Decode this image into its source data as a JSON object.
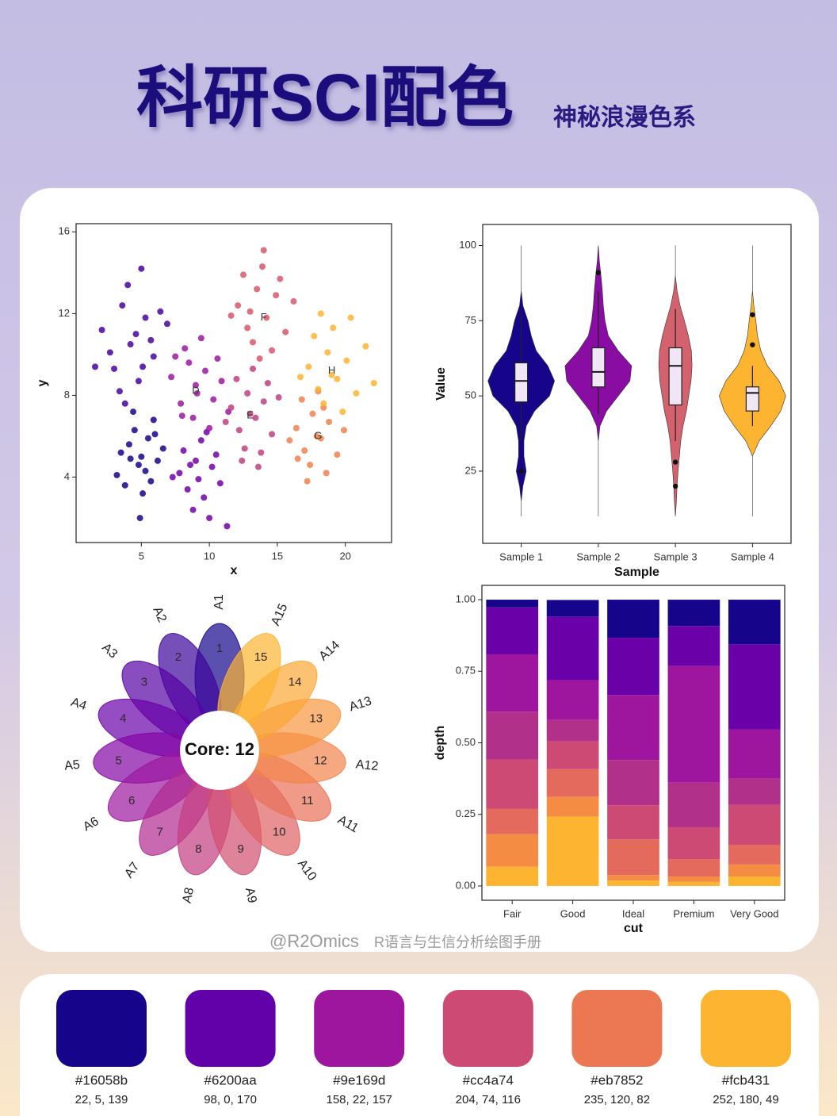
{
  "header": {
    "title": "科研SCI配色",
    "subtitle": "神秘浪漫色系"
  },
  "watermark": {
    "handle": "@R2Omics",
    "text": "R语言与生信分析绘图手册"
  },
  "chart_data": [
    {
      "type": "scatter",
      "xlabel": "x",
      "ylabel": "y",
      "xlim": [
        0.2,
        23.4
      ],
      "ylim": [
        0.8,
        16.4
      ],
      "xticks": [
        5,
        10,
        15,
        20
      ],
      "yticks": [
        4,
        8,
        12,
        16
      ],
      "series": [
        {
          "color": "#16058b",
          "x": [
            3.2,
            4.1,
            4.8,
            5.5,
            6.2,
            3.8,
            4.5,
            5.1,
            5.9,
            6.6,
            4.2,
            5.3,
            4.9,
            3.5,
            5.7,
            6.0,
            4.4,
            5.0
          ],
          "y": [
            4.1,
            5.6,
            4.6,
            5.9,
            4.8,
            3.6,
            6.3,
            3.2,
            6.8,
            5.4,
            4.9,
            4.3,
            2.0,
            5.2,
            3.8,
            6.1,
            7.2,
            5.0
          ]
        },
        {
          "color": "#47039f",
          "x": [
            2.1,
            3.0,
            3.6,
            4.2,
            4.8,
            5.3,
            5.9,
            6.4,
            2.7,
            3.4,
            4.0,
            4.6,
            5.1,
            5.7,
            6.9,
            1.6,
            3.8,
            5.0
          ],
          "y": [
            11.2,
            9.3,
            12.4,
            10.5,
            8.7,
            11.8,
            9.9,
            12.1,
            10.1,
            8.2,
            13.4,
            11.0,
            9.4,
            10.7,
            11.5,
            9.4,
            7.6,
            14.2
          ]
        },
        {
          "color": "#7201a8",
          "x": [
            7.8,
            8.4,
            9.0,
            9.6,
            10.2,
            10.8,
            8.1,
            8.8,
            9.4,
            10.0,
            7.3,
            9.2,
            10.5,
            8.6,
            11.3,
            9.8
          ],
          "y": [
            4.2,
            3.4,
            4.8,
            3.0,
            4.5,
            3.7,
            5.3,
            2.4,
            5.8,
            2.0,
            4.0,
            3.9,
            5.1,
            4.6,
            1.6,
            6.2
          ]
        },
        {
          "color": "#9c179e",
          "x": [
            7.2,
            7.9,
            8.5,
            9.1,
            9.7,
            10.3,
            10.9,
            8.2,
            8.8,
            9.4,
            10.0,
            7.5,
            9.0,
            10.6,
            11.4,
            8.0
          ],
          "y": [
            8.9,
            7.6,
            9.6,
            8.1,
            9.2,
            7.8,
            8.7,
            10.3,
            6.9,
            10.8,
            6.4,
            9.9,
            8.5,
            9.8,
            7.2,
            7.0
          ]
        },
        {
          "color": "#c03f80",
          "x": [
            11.6,
            12.2,
            12.8,
            13.4,
            14.0,
            14.6,
            12.0,
            12.6,
            13.2,
            13.8,
            11.2,
            13.0,
            14.3,
            12.4,
            13.6,
            15.1
          ],
          "y": [
            7.4,
            6.3,
            8.1,
            6.9,
            7.7,
            6.1,
            8.8,
            5.4,
            9.3,
            5.2,
            6.7,
            7.1,
            8.6,
            4.8,
            4.5,
            7.9
          ]
        },
        {
          "color": "#d8576b",
          "x": [
            12.1,
            12.8,
            13.5,
            14.2,
            14.9,
            15.6,
            12.5,
            13.2,
            13.9,
            14.6,
            11.6,
            13.0,
            15.2,
            14.0,
            16.2,
            13.7
          ],
          "y": [
            12.4,
            11.3,
            13.2,
            11.8,
            12.9,
            11.1,
            13.9,
            10.6,
            14.3,
            10.2,
            11.9,
            12.1,
            13.7,
            15.1,
            12.6,
            9.8
          ]
        },
        {
          "color": "#f0804e",
          "x": [
            16.4,
            17.0,
            17.6,
            18.2,
            18.8,
            19.4,
            16.8,
            17.4,
            18.0,
            18.6,
            15.9,
            17.9,
            19.9,
            17.2,
            18.4,
            16.5
          ],
          "y": [
            6.4,
            5.3,
            7.1,
            5.9,
            6.7,
            5.1,
            7.8,
            4.6,
            8.2,
            4.2,
            5.8,
            6.0,
            6.3,
            3.8,
            7.4,
            4.9
          ]
        },
        {
          "color": "#fcb431",
          "x": [
            17.3,
            18.0,
            18.7,
            19.4,
            20.1,
            20.8,
            17.7,
            18.4,
            19.1,
            19.8,
            16.7,
            19.0,
            21.5,
            18.2,
            20.4,
            22.1
          ],
          "y": [
            9.4,
            8.3,
            10.1,
            8.8,
            9.7,
            8.1,
            10.9,
            7.6,
            11.3,
            7.2,
            8.9,
            9.0,
            10.4,
            12.0,
            11.8,
            8.6
          ]
        }
      ],
      "annotations": [
        {
          "text": "D",
          "x": 9,
          "y": 8.2
        },
        {
          "text": "E",
          "x": 13,
          "y": 7
        },
        {
          "text": "F",
          "x": 14,
          "y": 11.8
        },
        {
          "text": "G",
          "x": 18,
          "y": 6
        },
        {
          "text": "H",
          "x": 19,
          "y": 9.2
        }
      ]
    },
    {
      "type": "violin",
      "xlabel": "Sample",
      "ylabel": "Value",
      "categories": [
        "Sample 1",
        "Sample 2",
        "Sample 3",
        "Sample 4"
      ],
      "colors": [
        "#16058b",
        "#8a0da3",
        "#d4626e",
        "#fcb431"
      ],
      "ylim": [
        1,
        107
      ],
      "yticks": [
        25,
        50,
        75,
        100
      ],
      "density_y": [
        10,
        15,
        20,
        25,
        30,
        35,
        40,
        45,
        50,
        55,
        60,
        65,
        70,
        75,
        80,
        85,
        90,
        95,
        100
      ],
      "density": [
        [
          0,
          0,
          0.05,
          0.15,
          0.08,
          0.08,
          0.15,
          0.4,
          0.85,
          1,
          0.8,
          0.45,
          0.3,
          0.2,
          0.05,
          0,
          0,
          0,
          0
        ],
        [
          0,
          0,
          0,
          0,
          0,
          0,
          0.05,
          0.25,
          0.6,
          0.95,
          1,
          0.6,
          0.3,
          0.2,
          0.15,
          0.12,
          0.08,
          0.03,
          0
        ],
        [
          0,
          0.03,
          0.05,
          0.08,
          0.12,
          0.16,
          0.23,
          0.33,
          0.4,
          0.47,
          0.5,
          0.48,
          0.39,
          0.27,
          0.14,
          0.05,
          0,
          0,
          0
        ],
        [
          0,
          0,
          0,
          0,
          0,
          0.2,
          0.55,
          0.85,
          1,
          0.8,
          0.45,
          0.25,
          0.15,
          0.1,
          0.04,
          0,
          0,
          0,
          0
        ]
      ],
      "box_min": [
        35,
        44,
        35,
        40
      ],
      "q1": [
        48,
        53,
        47,
        45
      ],
      "median": [
        55,
        58,
        60,
        51
      ],
      "q3": [
        61,
        66,
        66,
        53
      ],
      "box_max": [
        78,
        85,
        79,
        60
      ],
      "outliers": [
        [
          25
        ],
        [
          91
        ],
        [
          28,
          20
        ],
        [
          67,
          77
        ]
      ]
    },
    {
      "type": "flower",
      "categories": [
        "A1",
        "A2",
        "A3",
        "A4",
        "A5",
        "A6",
        "A7",
        "A8",
        "A9",
        "A10",
        "A11",
        "A12",
        "A13",
        "A14",
        "A15"
      ],
      "values": [
        1,
        2,
        3,
        4,
        5,
        6,
        7,
        8,
        9,
        10,
        11,
        12,
        13,
        14,
        15
      ],
      "colors": [
        "#16058b",
        "#3d049b",
        "#5502a4",
        "#6a00a8",
        "#8405a7",
        "#9c179e",
        "#b12a90",
        "#c33d80",
        "#d24f71",
        "#de6164",
        "#e97158",
        "#f2844b",
        "#f89540",
        "#fca636",
        "#fcb431"
      ],
      "core_prefix": "Core:",
      "core": 12
    },
    {
      "type": "bar",
      "stacked": true,
      "xlabel": "cut",
      "ylabel": "depth",
      "categories": [
        "Fair",
        "Good",
        "Ideal",
        "Premium",
        "Very Good"
      ],
      "ylim": [
        -0.05,
        1.05
      ],
      "yticks": [
        {
          "value": 0,
          "label": "0.00"
        },
        0.25,
        {
          "value": 0.5,
          "label": "0.50"
        },
        0.75,
        {
          "value": 1,
          "label": "1.00"
        }
      ],
      "series": [
        {
          "color": "#fcb431",
          "values": [
            0.067,
            0.242,
            0.019,
            0.014,
            0.033
          ]
        },
        {
          "color": "#f48c44",
          "values": [
            0.114,
            0.069,
            0.019,
            0.019,
            0.042
          ]
        },
        {
          "color": "#e36a5d",
          "values": [
            0.089,
            0.097,
            0.125,
            0.061,
            0.069
          ]
        },
        {
          "color": "#cc4a74",
          "values": [
            0.172,
            0.097,
            0.119,
            0.111,
            0.139
          ]
        },
        {
          "color": "#b0308a",
          "values": [
            0.167,
            0.075,
            0.158,
            0.156,
            0.092
          ]
        },
        {
          "color": "#9e169d",
          "values": [
            0.2,
            0.139,
            0.227,
            0.408,
            0.172
          ]
        },
        {
          "color": "#6a00a8",
          "values": [
            0.164,
            0.222,
            0.2,
            0.139,
            0.297
          ]
        },
        {
          "color": "#16058b",
          "values": [
            0.027,
            0.058,
            0.133,
            0.092,
            0.156
          ]
        }
      ]
    }
  ],
  "palette": [
    {
      "hex": "#16058b",
      "rgb": "22, 5, 139"
    },
    {
      "hex": "#6200aa",
      "rgb": "98, 0, 170"
    },
    {
      "hex": "#9e169d",
      "rgb": "158, 22, 157"
    },
    {
      "hex": "#cc4a74",
      "rgb": "204, 74, 116"
    },
    {
      "hex": "#eb7852",
      "rgb": "235, 120, 82"
    },
    {
      "hex": "#fcb431",
      "rgb": "252, 180, 49"
    }
  ]
}
